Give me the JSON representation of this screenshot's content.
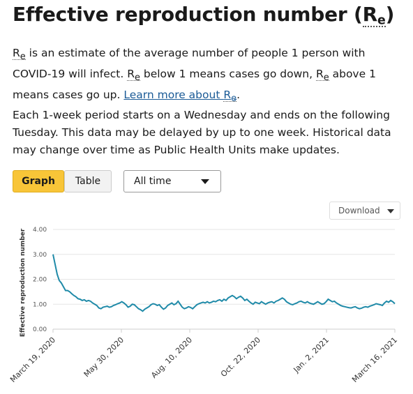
{
  "heading": {
    "text": "Effective reproduction number (",
    "abbr": "R",
    "abbr_sub": "e",
    "close": ")"
  },
  "intro": {
    "abbr": "R",
    "abbr_sub": "e",
    "text1": " is an estimate of the average number of people 1 person with COVID-19 will infect. ",
    "text2": " below 1 means cases go down, ",
    "text3": " above 1 means cases go up. ",
    "link_text": "Learn more about ",
    "tail": "."
  },
  "note": "Each 1-week period starts on a Wednesday and ends on the following Tuesday. This data may be delayed by up to one week. Historical data may change over time as Public Health Units make updates.",
  "controls": {
    "graph_label": "Graph",
    "table_label": "Table",
    "range_selected": "All time",
    "download_label": "Download"
  },
  "colors": {
    "line": "#1f8aa8",
    "grid": "#e6e6e6",
    "accent": "#f8c538"
  },
  "chart_data": {
    "type": "line",
    "ylabel": "Effective reproduction number",
    "ylim": [
      0,
      4
    ],
    "y_ticks": [
      "0.00",
      "1.00",
      "2.00",
      "3.00",
      "4.00"
    ],
    "x_tick_labels": [
      "March 19, 2020",
      "May 30, 2020",
      "Aug. 10, 2020",
      "Oct. 22, 2020",
      "Jan. 2, 2021",
      "March 16, 2021"
    ],
    "grid": true,
    "series": [
      {
        "values": [
          3.0,
          2.6,
          2.2,
          1.95,
          1.85,
          1.7,
          1.55,
          1.55,
          1.5,
          1.42,
          1.35,
          1.3,
          1.22,
          1.2,
          1.15,
          1.18,
          1.12,
          1.15,
          1.12,
          1.05,
          1.0,
          0.95,
          0.85,
          0.82,
          0.88,
          0.9,
          0.92,
          0.88,
          0.9,
          0.95,
          0.98,
          1.02,
          1.05,
          1.1,
          1.05,
          0.98,
          0.88,
          0.92,
          1.0,
          0.98,
          0.9,
          0.82,
          0.78,
          0.72,
          0.8,
          0.85,
          0.9,
          0.98,
          1.02,
          1.0,
          0.95,
          0.98,
          0.88,
          0.8,
          0.85,
          0.95,
          1.0,
          1.05,
          0.98,
          1.02,
          1.12,
          1.0,
          0.88,
          0.82,
          0.85,
          0.9,
          0.87,
          0.82,
          0.9,
          0.98,
          1.02,
          1.05,
          1.08,
          1.05,
          1.1,
          1.05,
          1.08,
          1.12,
          1.1,
          1.15,
          1.18,
          1.12,
          1.2,
          1.15,
          1.25,
          1.3,
          1.35,
          1.3,
          1.22,
          1.28,
          1.32,
          1.25,
          1.15,
          1.2,
          1.12,
          1.05,
          1.0,
          1.08,
          1.05,
          1.02,
          1.1,
          1.05,
          1.0,
          1.05,
          1.08,
          1.1,
          1.05,
          1.12,
          1.15,
          1.2,
          1.25,
          1.2,
          1.1,
          1.05,
          1.0,
          0.98,
          1.02,
          1.05,
          1.1,
          1.12,
          1.08,
          1.05,
          1.1,
          1.05,
          1.02,
          1.0,
          1.05,
          1.1,
          1.05,
          1.0,
          1.02,
          1.1,
          1.2,
          1.15,
          1.1,
          1.12,
          1.05,
          1.0,
          0.95,
          0.92,
          0.9,
          0.88,
          0.86,
          0.85,
          0.88,
          0.9,
          0.85,
          0.82,
          0.84,
          0.88,
          0.9,
          0.88,
          0.92,
          0.95,
          0.98,
          1.02,
          1.0,
          0.98,
          0.95,
          1.05,
          1.12,
          1.08,
          1.15,
          1.1,
          1.02
        ]
      }
    ]
  }
}
